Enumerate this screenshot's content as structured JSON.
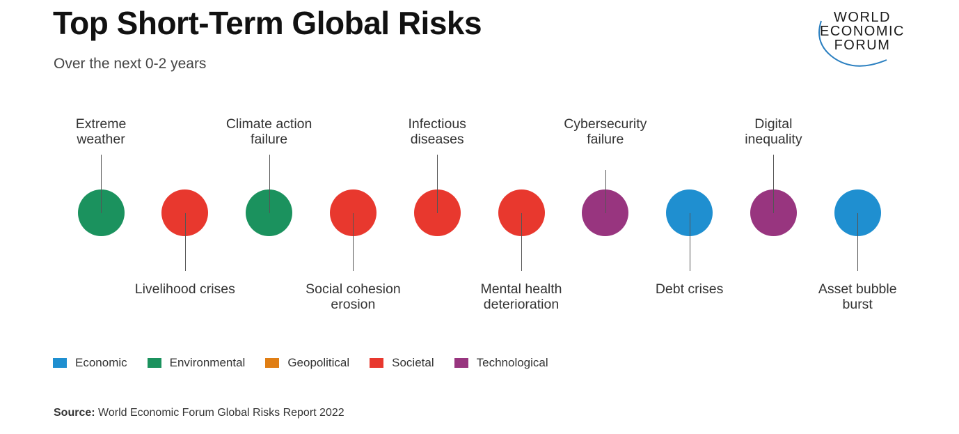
{
  "header": {
    "title": "Top Short-Term Global Risks",
    "subtitle": "Over the next 0-2 years"
  },
  "logo": {
    "line1": "WORLD",
    "line2": "ECONOMIC",
    "line3": "FORUM"
  },
  "risks": [
    {
      "label_line1": "Extreme",
      "label_line2": "weather",
      "category": "Environmental",
      "position": "above"
    },
    {
      "label_line1": "Livelihood crises",
      "label_line2": "",
      "category": "Societal",
      "position": "below"
    },
    {
      "label_line1": "Climate action",
      "label_line2": "failure",
      "category": "Environmental",
      "position": "above"
    },
    {
      "label_line1": "Social cohesion",
      "label_line2": "erosion",
      "category": "Societal",
      "position": "below"
    },
    {
      "label_line1": "Infectious",
      "label_line2": "diseases",
      "category": "Societal",
      "position": "above"
    },
    {
      "label_line1": "Mental health",
      "label_line2": "deterioration",
      "category": "Societal",
      "position": "below"
    },
    {
      "label_line1": "Cybersecurity",
      "label_line2": "failure",
      "category": "Technological",
      "position": "above"
    },
    {
      "label_line1": "Debt crises",
      "label_line2": "",
      "category": "Economic",
      "position": "below"
    },
    {
      "label_line1": "Digital",
      "label_line2": "inequality",
      "category": "Technological",
      "position": "above"
    },
    {
      "label_line1": "Asset bubble",
      "label_line2": "burst",
      "category": "Economic",
      "position": "below"
    }
  ],
  "legend": [
    {
      "label": "Economic",
      "color": "#1f8fd0"
    },
    {
      "label": "Environmental",
      "color": "#1b925e"
    },
    {
      "label": "Geopolitical",
      "color": "#e07e14"
    },
    {
      "label": "Societal",
      "color": "#e8382e"
    },
    {
      "label": "Technological",
      "color": "#98357f"
    }
  ],
  "category_colors": {
    "Economic": "#1f8fd0",
    "Environmental": "#1b925e",
    "Geopolitical": "#e07e14",
    "Societal": "#e8382e",
    "Technological": "#98357f"
  },
  "source": {
    "prefix": "Source:",
    "text": " World Economic Forum Global Risks Report 2022"
  }
}
